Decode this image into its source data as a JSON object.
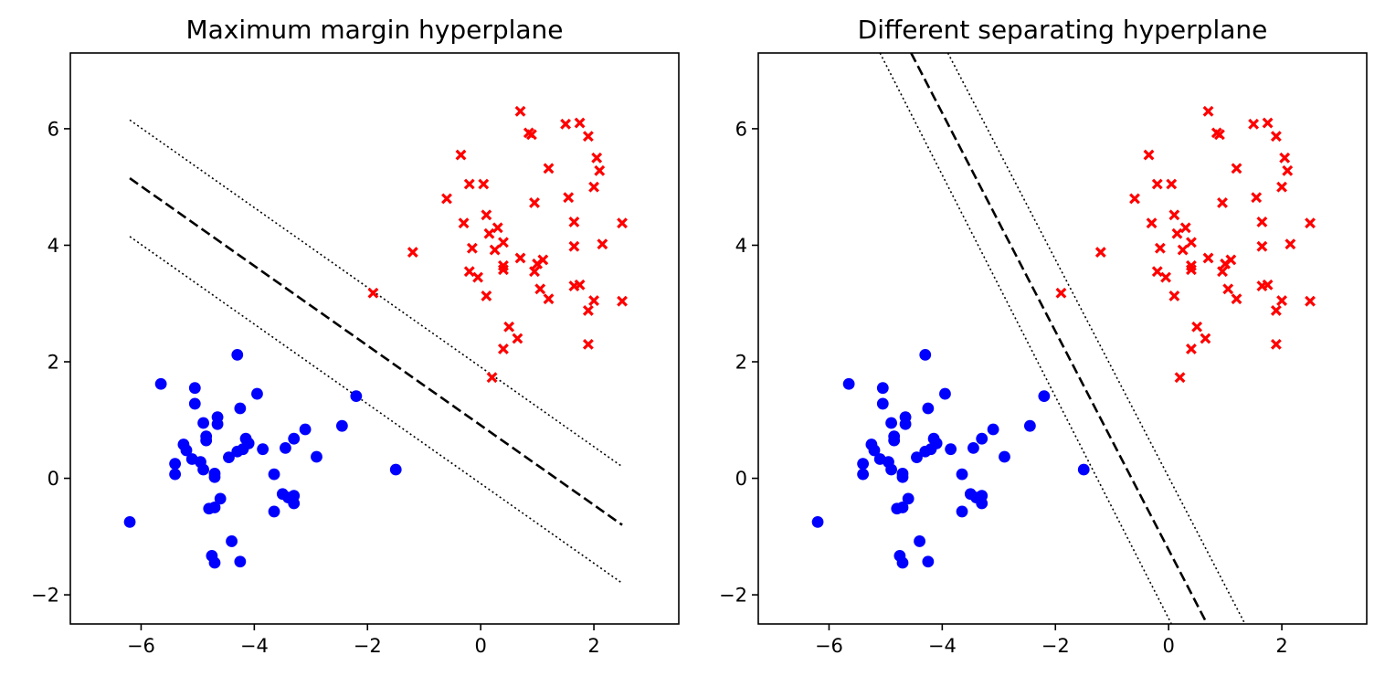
{
  "chart_data": [
    {
      "type": "scatter",
      "title": "Maximum margin hyperplane",
      "xlabel": "",
      "ylabel": "",
      "xlim": [
        -7.25,
        3.5
      ],
      "ylim": [
        -2.5,
        7.3
      ],
      "xticks": [
        -6,
        -4,
        -2,
        0,
        2
      ],
      "yticks": [
        -2,
        0,
        2,
        4,
        6
      ],
      "xtick_labels": [
        "−6",
        "−4",
        "−2",
        "0",
        "2"
      ],
      "ytick_labels": [
        "−2",
        "0",
        "2",
        "4",
        "6"
      ],
      "grid": false,
      "series": [
        {
          "marker": "circle",
          "color": "#0000ff",
          "points": [
            [
              -6.2,
              -0.75
            ],
            [
              -5.65,
              1.62
            ],
            [
              -5.4,
              0.25
            ],
            [
              -5.4,
              0.07
            ],
            [
              -5.25,
              0.58
            ],
            [
              -5.2,
              0.48
            ],
            [
              -5.1,
              0.33
            ],
            [
              -5.05,
              1.55
            ],
            [
              -5.05,
              1.28
            ],
            [
              -4.95,
              0.28
            ],
            [
              -4.9,
              0.95
            ],
            [
              -4.9,
              0.15
            ],
            [
              -4.85,
              0.65
            ],
            [
              -4.85,
              0.72
            ],
            [
              -4.8,
              -0.52
            ],
            [
              -4.75,
              -1.33
            ],
            [
              -4.7,
              0.08
            ],
            [
              -4.7,
              0.02
            ],
            [
              -4.7,
              -1.45
            ],
            [
              -4.7,
              -0.5
            ],
            [
              -4.65,
              1.05
            ],
            [
              -4.65,
              0.93
            ],
            [
              -4.6,
              -0.35
            ],
            [
              -4.45,
              0.36
            ],
            [
              -4.4,
              -1.08
            ],
            [
              -4.3,
              2.12
            ],
            [
              -4.3,
              0.46
            ],
            [
              -4.25,
              1.2
            ],
            [
              -4.25,
              -1.43
            ],
            [
              -4.2,
              0.5
            ],
            [
              -4.15,
              0.68
            ],
            [
              -4.1,
              0.6
            ],
            [
              -3.95,
              1.45
            ],
            [
              -3.85,
              0.5
            ],
            [
              -3.65,
              0.07
            ],
            [
              -3.65,
              -0.57
            ],
            [
              -3.5,
              -0.27
            ],
            [
              -3.45,
              0.52
            ],
            [
              -3.4,
              -0.33
            ],
            [
              -3.3,
              -0.3
            ],
            [
              -3.3,
              -0.43
            ],
            [
              -3.3,
              0.68
            ],
            [
              -3.1,
              0.84
            ],
            [
              -2.9,
              0.37
            ],
            [
              -2.45,
              0.9
            ],
            [
              -2.2,
              1.41
            ],
            [
              -1.5,
              0.15
            ]
          ]
        },
        {
          "marker": "x",
          "color": "#ff0000",
          "points": [
            [
              -1.9,
              3.18
            ],
            [
              -1.2,
              3.88
            ],
            [
              -0.6,
              4.8
            ],
            [
              -0.35,
              5.55
            ],
            [
              -0.3,
              4.38
            ],
            [
              -0.2,
              5.05
            ],
            [
              -0.2,
              3.55
            ],
            [
              -0.15,
              3.95
            ],
            [
              -0.05,
              3.45
            ],
            [
              0.05,
              5.05
            ],
            [
              0.1,
              4.52
            ],
            [
              0.1,
              3.13
            ],
            [
              0.15,
              4.2
            ],
            [
              0.2,
              1.73
            ],
            [
              0.25,
              3.92
            ],
            [
              0.3,
              4.3
            ],
            [
              0.4,
              4.05
            ],
            [
              0.4,
              3.65
            ],
            [
              0.4,
              3.58
            ],
            [
              0.4,
              2.22
            ],
            [
              0.5,
              2.6
            ],
            [
              0.65,
              2.4
            ],
            [
              0.7,
              6.3
            ],
            [
              0.7,
              3.78
            ],
            [
              0.85,
              5.93
            ],
            [
              0.9,
              5.9
            ],
            [
              0.95,
              4.73
            ],
            [
              0.95,
              3.55
            ],
            [
              1.0,
              3.68
            ],
            [
              1.05,
              3.25
            ],
            [
              1.1,
              3.75
            ],
            [
              1.2,
              5.32
            ],
            [
              1.2,
              3.08
            ],
            [
              1.5,
              6.08
            ],
            [
              1.55,
              4.82
            ],
            [
              1.65,
              4.4
            ],
            [
              1.65,
              3.98
            ],
            [
              1.65,
              3.3
            ],
            [
              1.75,
              3.32
            ],
            [
              1.75,
              6.1
            ],
            [
              1.9,
              5.87
            ],
            [
              1.9,
              2.88
            ],
            [
              1.9,
              2.3
            ],
            [
              2.0,
              3.05
            ],
            [
              2.0,
              5.0
            ],
            [
              2.05,
              5.5
            ],
            [
              2.1,
              5.28
            ],
            [
              2.15,
              4.02
            ],
            [
              2.5,
              4.38
            ],
            [
              2.5,
              3.04
            ]
          ]
        }
      ],
      "lines": [
        {
          "style": "dashed",
          "x": [
            -6.2,
            2.5
          ],
          "y": [
            5.15,
            -0.8
          ]
        },
        {
          "style": "dotted",
          "x": [
            -6.2,
            2.5
          ],
          "y": [
            6.15,
            0.2
          ]
        },
        {
          "style": "dotted",
          "x": [
            -6.2,
            2.5
          ],
          "y": [
            4.15,
            -1.8
          ]
        }
      ]
    },
    {
      "type": "scatter",
      "title": "Different separating hyperplane",
      "xlabel": "",
      "ylabel": "",
      "xlim": [
        -7.25,
        3.5
      ],
      "ylim": [
        -2.5,
        7.3
      ],
      "xticks": [
        -6,
        -4,
        -2,
        0,
        2
      ],
      "yticks": [
        -2,
        0,
        2,
        4,
        6
      ],
      "xtick_labels": [
        "−6",
        "−4",
        "−2",
        "0",
        "2"
      ],
      "ytick_labels": [
        "−2",
        "0",
        "2",
        "4",
        "6"
      ],
      "grid": false,
      "series": [
        {
          "marker": "circle",
          "color": "#0000ff",
          "points": [
            [
              -6.2,
              -0.75
            ],
            [
              -5.65,
              1.62
            ],
            [
              -5.4,
              0.25
            ],
            [
              -5.4,
              0.07
            ],
            [
              -5.25,
              0.58
            ],
            [
              -5.2,
              0.48
            ],
            [
              -5.1,
              0.33
            ],
            [
              -5.05,
              1.55
            ],
            [
              -5.05,
              1.28
            ],
            [
              -4.95,
              0.28
            ],
            [
              -4.9,
              0.95
            ],
            [
              -4.9,
              0.15
            ],
            [
              -4.85,
              0.65
            ],
            [
              -4.85,
              0.72
            ],
            [
              -4.8,
              -0.52
            ],
            [
              -4.75,
              -1.33
            ],
            [
              -4.7,
              0.08
            ],
            [
              -4.7,
              0.02
            ],
            [
              -4.7,
              -1.45
            ],
            [
              -4.7,
              -0.5
            ],
            [
              -4.65,
              1.05
            ],
            [
              -4.65,
              0.93
            ],
            [
              -4.6,
              -0.35
            ],
            [
              -4.45,
              0.36
            ],
            [
              -4.4,
              -1.08
            ],
            [
              -4.3,
              2.12
            ],
            [
              -4.3,
              0.46
            ],
            [
              -4.25,
              1.2
            ],
            [
              -4.25,
              -1.43
            ],
            [
              -4.2,
              0.5
            ],
            [
              -4.15,
              0.68
            ],
            [
              -4.1,
              0.6
            ],
            [
              -3.95,
              1.45
            ],
            [
              -3.85,
              0.5
            ],
            [
              -3.65,
              0.07
            ],
            [
              -3.65,
              -0.57
            ],
            [
              -3.5,
              -0.27
            ],
            [
              -3.45,
              0.52
            ],
            [
              -3.4,
              -0.33
            ],
            [
              -3.3,
              -0.3
            ],
            [
              -3.3,
              -0.43
            ],
            [
              -3.3,
              0.68
            ],
            [
              -3.1,
              0.84
            ],
            [
              -2.9,
              0.37
            ],
            [
              -2.45,
              0.9
            ],
            [
              -2.2,
              1.41
            ],
            [
              -1.5,
              0.15
            ]
          ]
        },
        {
          "marker": "x",
          "color": "#ff0000",
          "points": [
            [
              -1.9,
              3.18
            ],
            [
              -1.2,
              3.88
            ],
            [
              -0.6,
              4.8
            ],
            [
              -0.35,
              5.55
            ],
            [
              -0.3,
              4.38
            ],
            [
              -0.2,
              5.05
            ],
            [
              -0.2,
              3.55
            ],
            [
              -0.15,
              3.95
            ],
            [
              -0.05,
              3.45
            ],
            [
              0.05,
              5.05
            ],
            [
              0.1,
              4.52
            ],
            [
              0.1,
              3.13
            ],
            [
              0.15,
              4.2
            ],
            [
              0.2,
              1.73
            ],
            [
              0.25,
              3.92
            ],
            [
              0.3,
              4.3
            ],
            [
              0.4,
              4.05
            ],
            [
              0.4,
              3.65
            ],
            [
              0.4,
              3.58
            ],
            [
              0.4,
              2.22
            ],
            [
              0.5,
              2.6
            ],
            [
              0.65,
              2.4
            ],
            [
              0.7,
              6.3
            ],
            [
              0.7,
              3.78
            ],
            [
              0.85,
              5.93
            ],
            [
              0.9,
              5.9
            ],
            [
              0.95,
              4.73
            ],
            [
              0.95,
              3.55
            ],
            [
              1.0,
              3.68
            ],
            [
              1.05,
              3.25
            ],
            [
              1.1,
              3.75
            ],
            [
              1.2,
              5.32
            ],
            [
              1.2,
              3.08
            ],
            [
              1.5,
              6.08
            ],
            [
              1.55,
              4.82
            ],
            [
              1.65,
              4.4
            ],
            [
              1.65,
              3.98
            ],
            [
              1.65,
              3.3
            ],
            [
              1.75,
              3.32
            ],
            [
              1.75,
              6.1
            ],
            [
              1.9,
              5.87
            ],
            [
              1.9,
              2.88
            ],
            [
              1.9,
              2.3
            ],
            [
              2.0,
              3.05
            ],
            [
              2.0,
              5.0
            ],
            [
              2.05,
              5.5
            ],
            [
              2.1,
              5.28
            ],
            [
              2.15,
              4.02
            ],
            [
              2.5,
              4.38
            ],
            [
              2.5,
              3.04
            ]
          ]
        }
      ],
      "lines": [
        {
          "style": "dashed",
          "x": [
            -4.55,
            0.68
          ],
          "y": [
            7.3,
            -2.5
          ]
        },
        {
          "style": "dotted",
          "x": [
            -5.1,
            0.05
          ],
          "y": [
            7.3,
            -2.5
          ]
        },
        {
          "style": "dotted",
          "x": [
            -3.9,
            1.35
          ],
          "y": [
            7.3,
            -2.5
          ]
        }
      ]
    }
  ]
}
